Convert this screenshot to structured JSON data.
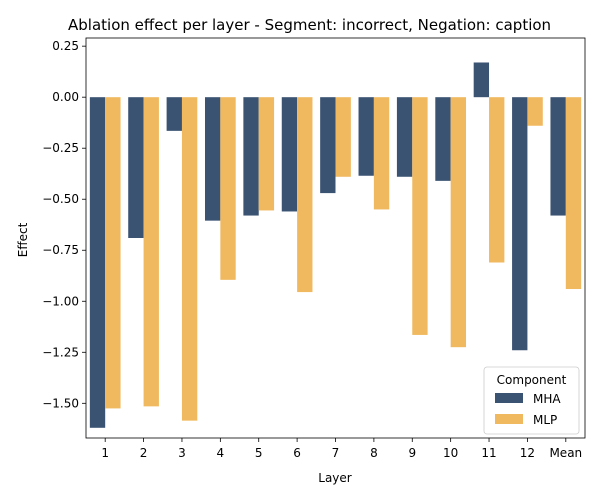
{
  "chart_data": {
    "type": "bar",
    "title": "Ablation effect per layer - Segment: incorrect, Negation: caption",
    "xlabel": "Layer",
    "ylabel": "Effect",
    "categories": [
      "1",
      "2",
      "3",
      "4",
      "5",
      "6",
      "7",
      "8",
      "9",
      "10",
      "11",
      "12",
      "Mean"
    ],
    "series": [
      {
        "name": "MHA",
        "color": "#3b5373",
        "values": [
          -1.62,
          -0.69,
          -0.165,
          -0.605,
          -0.58,
          -0.56,
          -0.47,
          -0.385,
          -0.39,
          -0.41,
          0.17,
          -1.24,
          -0.58
        ]
      },
      {
        "name": "MLP",
        "color": "#f0b960",
        "values": [
          -1.525,
          -1.515,
          -1.585,
          -0.895,
          -0.555,
          -0.955,
          -0.39,
          -0.55,
          -1.165,
          -1.225,
          -0.81,
          -0.14,
          -0.94
        ]
      }
    ],
    "ylim": [
      -1.67,
      0.29
    ],
    "yticks": [
      0.25,
      0,
      -0.25,
      -0.5,
      -0.75,
      -1,
      -1.25,
      -1.5
    ],
    "ytick_labels": [
      "0.25",
      "0.00",
      "−0.25",
      "−0.50",
      "−0.75",
      "−1.00",
      "−1.25",
      "−1.50"
    ],
    "grid": false,
    "legend": {
      "title": "Component",
      "placement": "lower-right"
    }
  }
}
